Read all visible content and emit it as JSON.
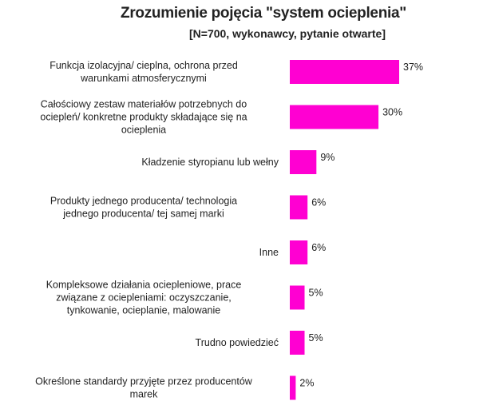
{
  "chart_data": {
    "type": "bar",
    "orientation": "horizontal",
    "title": "Zrozumienie pojęcia \"system ocieplenia\"",
    "subtitle": "[N=700, wykonawcy, pytanie otwarte]",
    "bar_color": "#ff00d2",
    "value_suffix": "%",
    "xlim": [
      0,
      37
    ],
    "categories": [
      [
        "Funkcja izolacyjna/ cieplna, ochrona przed",
        "warunkami atmosferycznymi"
      ],
      [
        "Całościowy zestaw materiałów potrzebnych do",
        "ociepleń/ konkretne produkty składające się na",
        "ocieplenia"
      ],
      [
        "Kładzenie styropianu lub wełny"
      ],
      [
        "Produkty jednego producenta/ technologia",
        "jednego producenta/ tej samej marki"
      ],
      [
        "Inne"
      ],
      [
        "Kompleksowe działania ociepleniowe, prace",
        "związane z ociepleniami: oczyszczanie,",
        "tynkowanie, ocieplanie, malowanie"
      ],
      [
        "Trudno powiedzieć"
      ],
      [
        "Określone standardy przyjęte przez producentów",
        "marek"
      ]
    ],
    "values": [
      37,
      30,
      9,
      6,
      6,
      5,
      5,
      2
    ]
  }
}
